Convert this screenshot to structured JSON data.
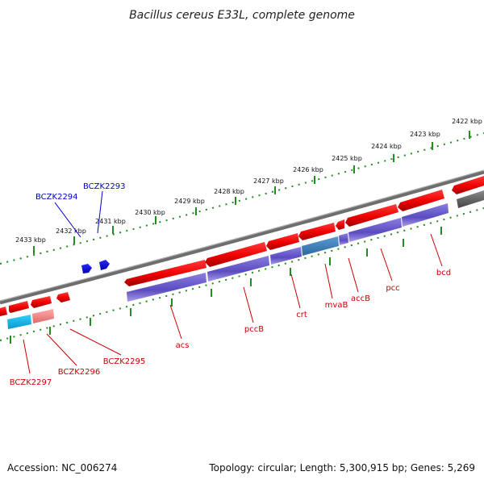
{
  "title": "Bacillus cereus E33L, complete genome",
  "footer": {
    "accession": "Accession: NC_006274",
    "summary": "Topology: circular; Length: 5,300,915 bp; Genes: 5,269"
  },
  "kbp_labels": [
    "2422 kbp",
    "2423 kbp",
    "2424 kbp",
    "2425 kbp",
    "2426 kbp",
    "2427 kbp",
    "2428 kbp",
    "2429 kbp",
    "2430 kbp",
    "2431 kbp",
    "2432 kbp",
    "2433 kbp"
  ],
  "forward_genes": [
    {
      "label": "BCZK2293",
      "color": "#0000cc"
    },
    {
      "label": "BCZK2294",
      "color": "#0000cc"
    }
  ],
  "reverse_genes": [
    {
      "label": "bcd"
    },
    {
      "label": "pcc"
    },
    {
      "label": "accB"
    },
    {
      "label": "mvaB"
    },
    {
      "label": "crt"
    },
    {
      "label": "pccB"
    },
    {
      "label": "acs"
    },
    {
      "label": "BCZK2295"
    },
    {
      "label": "BCZK2296"
    },
    {
      "label": "BCZK2297"
    }
  ],
  "colors": {
    "gene_red": "#ee1111",
    "gene_pink": "#ee8888",
    "cds_purple": "#6a5acd",
    "cds_teal": "#3a7ab0",
    "cds_cyan": "#18b8e8",
    "backbone": "#808080",
    "tick_green": "#228b22",
    "label_red": "#cc0000",
    "label_blue": "#0000cc"
  }
}
